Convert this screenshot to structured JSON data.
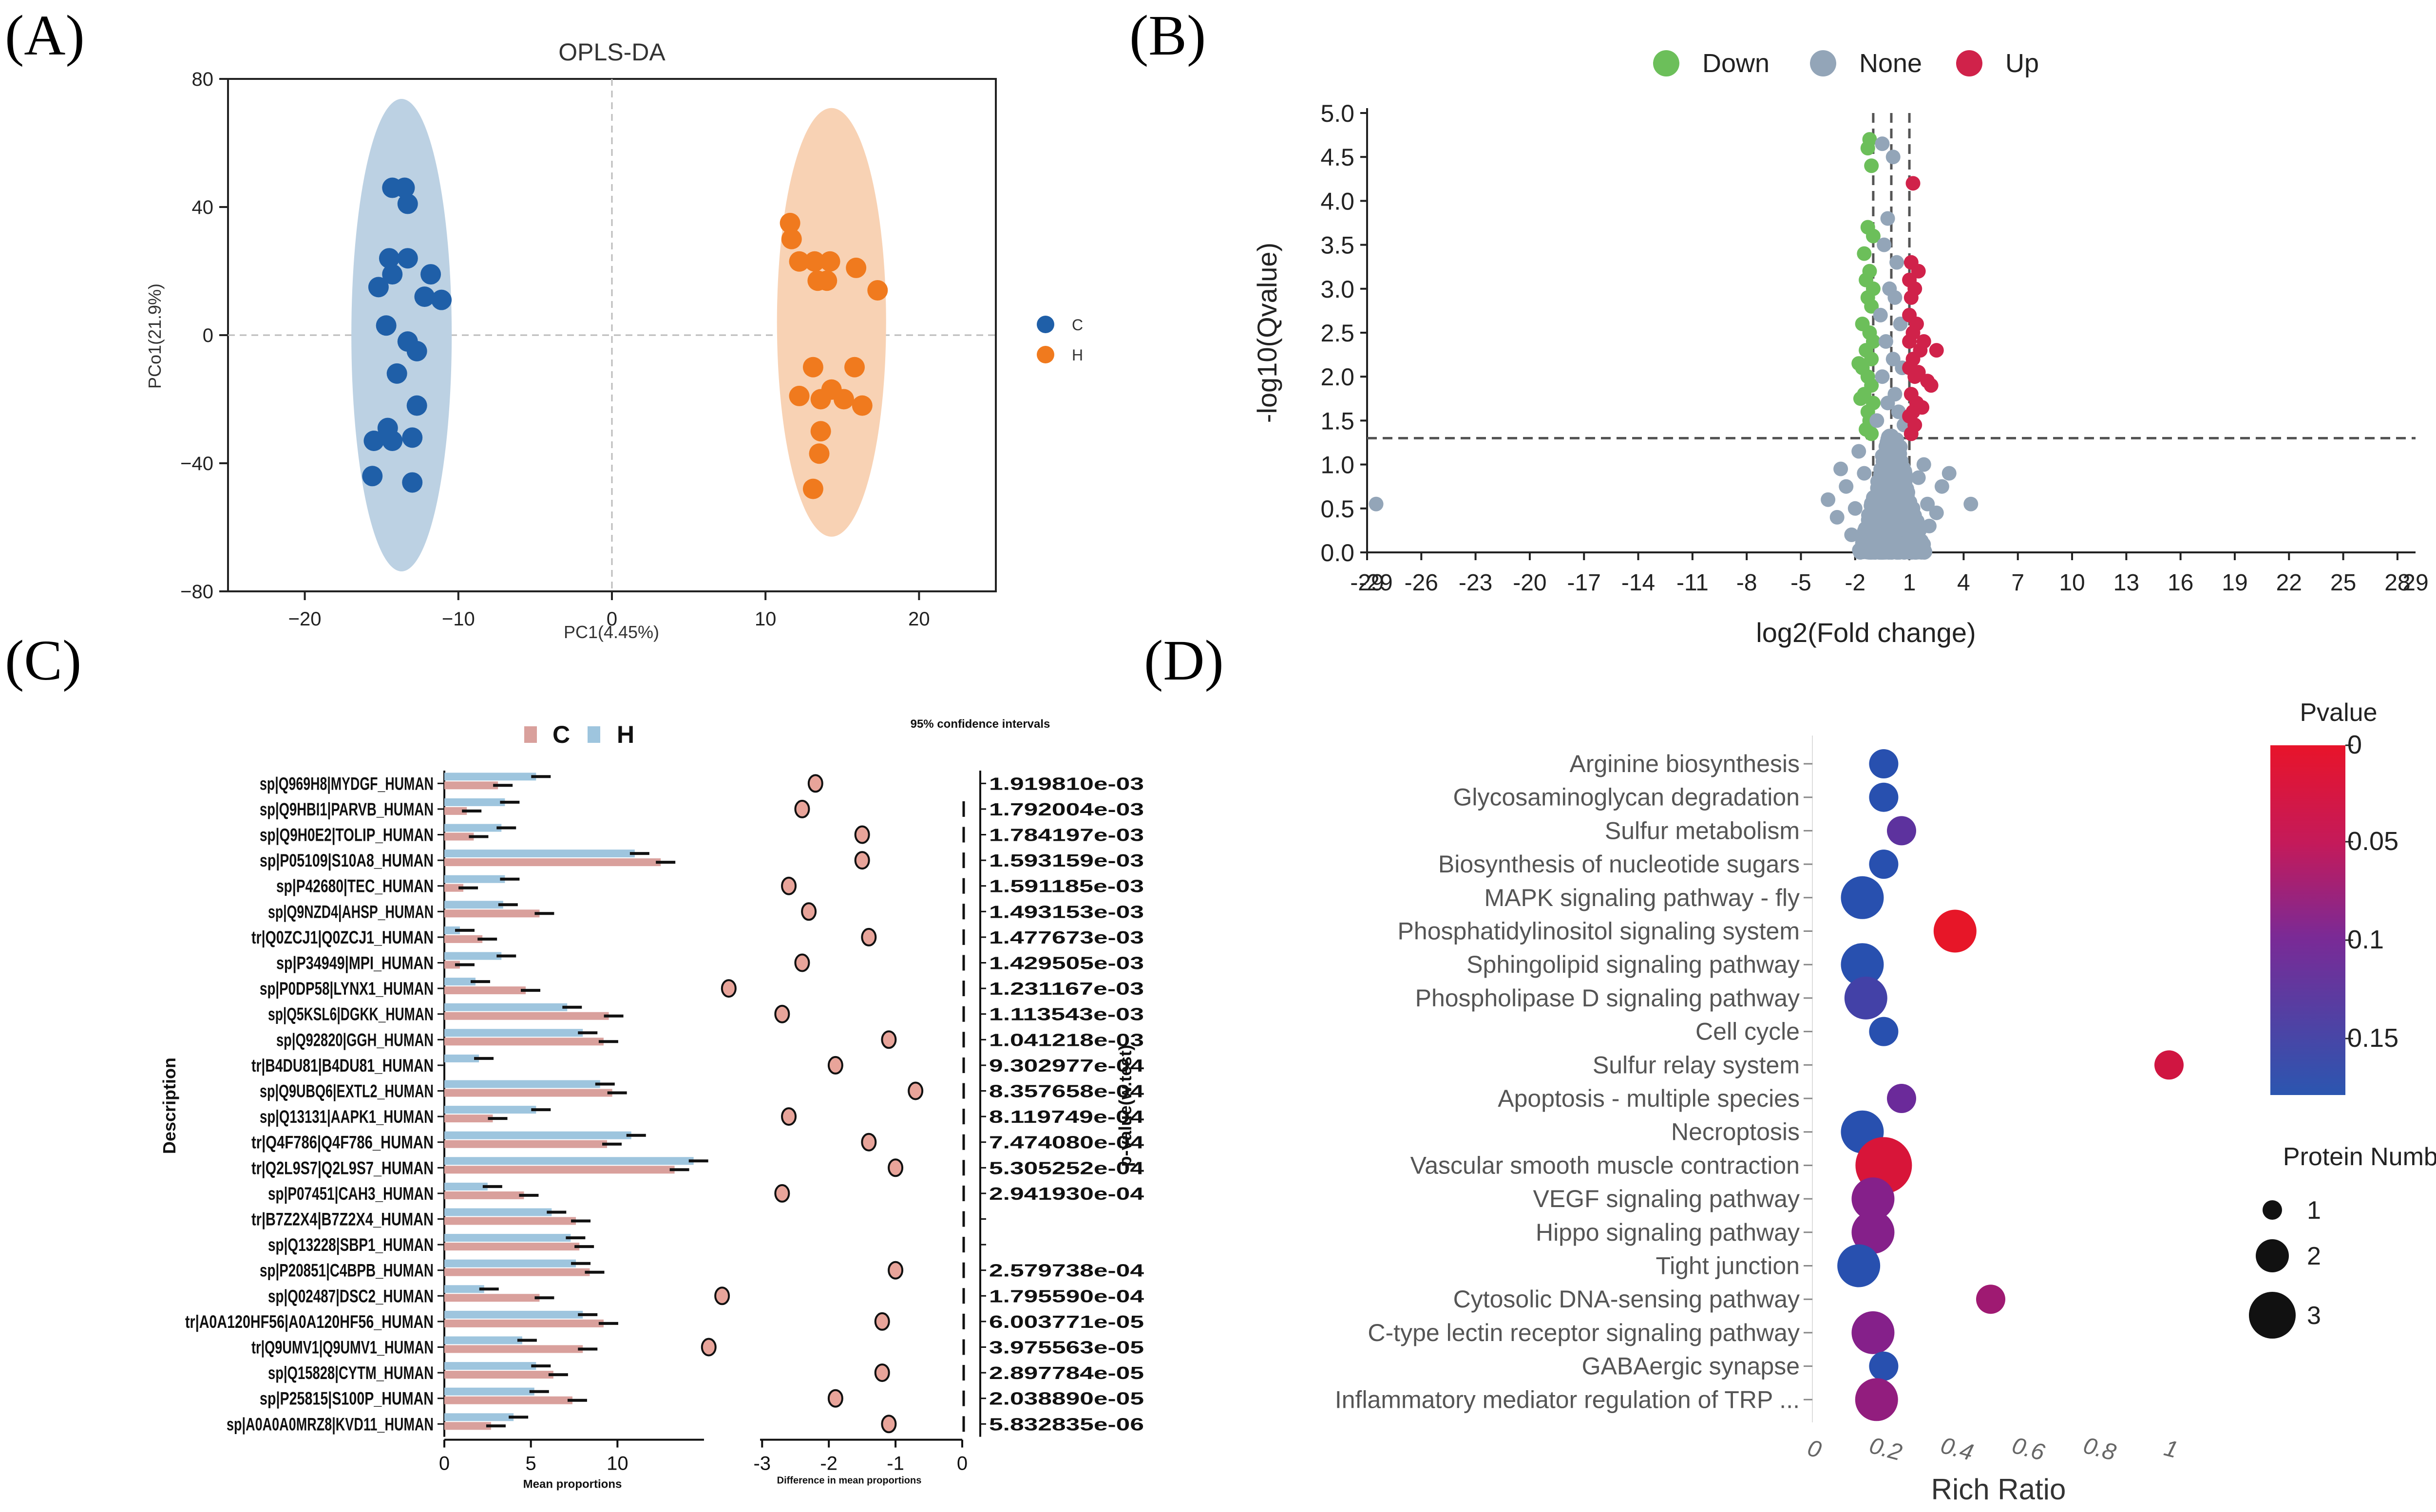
{
  "panels": {
    "a": "(A)",
    "b": "(B)",
    "c": "(C)",
    "d": "(D)"
  },
  "chart_data": [
    {
      "type": "scatter",
      "id": "A",
      "title": "OPLS-DA",
      "xlabel": "PC1(4.45%)",
      "ylabel": "PCo1(21.9%)",
      "xlim": [
        -25,
        25
      ],
      "ylim": [
        -80,
        80
      ],
      "xticks": [
        -20,
        -10,
        0,
        10,
        20
      ],
      "yticks": [
        80,
        40,
        0,
        -40,
        -80
      ],
      "grid": false,
      "legend_position": "right",
      "colors": {
        "C": "#1f5fa8",
        "H": "#f07a1e",
        "ellipse_C": "#bcd1e3",
        "ellipse_H": "#f8d2b4"
      },
      "series": [
        {
          "name": "C",
          "points": [
            [
              -14.3,
              46
            ],
            [
              -13.5,
              46
            ],
            [
              -13.3,
              41
            ],
            [
              -14.5,
              24
            ],
            [
              -14.3,
              19
            ],
            [
              -13.3,
              24
            ],
            [
              -11.8,
              19
            ],
            [
              -12.2,
              12
            ],
            [
              -11.1,
              11
            ],
            [
              -15.2,
              15
            ],
            [
              -14.7,
              3
            ],
            [
              -13.3,
              -2
            ],
            [
              -12.7,
              -5
            ],
            [
              -14,
              -12
            ],
            [
              -12.7,
              -22
            ],
            [
              -14.6,
              -29
            ],
            [
              -15.5,
              -33
            ],
            [
              -14.3,
              -33
            ],
            [
              -13,
              -32
            ],
            [
              -15.6,
              -44
            ],
            [
              -13,
              -46
            ]
          ]
        },
        {
          "name": "H",
          "points": [
            [
              11.6,
              35
            ],
            [
              11.7,
              30
            ],
            [
              12.2,
              23
            ],
            [
              13.2,
              23
            ],
            [
              14.2,
              23
            ],
            [
              13.4,
              17
            ],
            [
              14,
              17
            ],
            [
              15.9,
              21
            ],
            [
              17.3,
              14
            ],
            [
              15.8,
              -10
            ],
            [
              13.1,
              -10
            ],
            [
              14.3,
              -17
            ],
            [
              12.2,
              -19
            ],
            [
              15.1,
              -20
            ],
            [
              13.6,
              -20
            ],
            [
              16.3,
              -22
            ],
            [
              13.6,
              -30
            ],
            [
              13.5,
              -37
            ],
            [
              13.1,
              -48
            ]
          ]
        }
      ]
    },
    {
      "type": "scatter",
      "id": "B",
      "xlabel": "log2(Fold change)",
      "ylabel": "-log10(Qvalue)",
      "xlim": [
        -29,
        29
      ],
      "ylim": [
        0,
        5
      ],
      "xticks": [
        "-29",
        "-26",
        "-23",
        "-20",
        "-17",
        "-14",
        "-11",
        "-8",
        "-5",
        "-2",
        "1",
        "4",
        "7",
        "10",
        "13",
        "16",
        "19",
        "22",
        "25",
        "28"
      ],
      "extra_xticks": [
        "-29",
        "29"
      ],
      "yticks": [
        "5.0",
        "4.5",
        "4.0",
        "3.5",
        "3.0",
        "2.5",
        "2.0",
        "1.5",
        "1.0",
        "0.5",
        "0.0"
      ],
      "threshold_y": 1.3,
      "threshold_x": [
        -1,
        0,
        1
      ],
      "legend": [
        "Down",
        "None",
        "Up"
      ],
      "legend_position": "top",
      "colors": {
        "Down": "#6cbf5a",
        "None": "#93a5b8",
        "Up": "#d0224a"
      },
      "series": [
        {
          "name": "Down",
          "points": [
            [
              -1.2,
              4.7
            ],
            [
              -1.3,
              4.6
            ],
            [
              -1.1,
              4.4
            ],
            [
              -1.3,
              3.7
            ],
            [
              -1,
              3.6
            ],
            [
              -1.5,
              3.4
            ],
            [
              -1.2,
              3.2
            ],
            [
              -1.4,
              3.1
            ],
            [
              -1,
              3
            ],
            [
              -1.3,
              2.9
            ],
            [
              -1.1,
              2.8
            ],
            [
              -1.6,
              2.6
            ],
            [
              -1.2,
              2.5
            ],
            [
              -1,
              2.4
            ],
            [
              -1.4,
              2.3
            ],
            [
              -1.1,
              2.2
            ],
            [
              -1.6,
              2.1
            ],
            [
              -1.3,
              2
            ],
            [
              -1.1,
              1.9
            ],
            [
              -1.5,
              1.8
            ],
            [
              -1,
              1.7
            ],
            [
              -1.3,
              1.6
            ],
            [
              -1.2,
              1.5
            ],
            [
              -1.4,
              1.4
            ],
            [
              -1.1,
              1.35
            ],
            [
              -1.8,
              2.15
            ],
            [
              -1.7,
              1.75
            ]
          ]
        },
        {
          "name": "None",
          "points": [
            [
              -28.5,
              0.55
            ],
            [
              4.4,
              0.55
            ],
            [
              -0.5,
              4.65
            ],
            [
              0.1,
              4.5
            ],
            [
              -0.2,
              3.8
            ],
            [
              -0.4,
              3.5
            ],
            [
              0.3,
              3.3
            ],
            [
              -0.1,
              3.0
            ],
            [
              0.2,
              2.9
            ],
            [
              -0.6,
              2.7
            ],
            [
              0.5,
              2.6
            ],
            [
              -0.3,
              2.4
            ],
            [
              0.1,
              2.2
            ],
            [
              0.6,
              2.1
            ],
            [
              -0.5,
              2
            ],
            [
              0.2,
              1.8
            ],
            [
              -0.2,
              1.7
            ],
            [
              0.4,
              1.6
            ],
            [
              -0.8,
              1.5
            ],
            [
              0.7,
              1.45
            ],
            [
              -3.5,
              0.6
            ],
            [
              -3,
              0.4
            ],
            [
              -2.5,
              0.75
            ],
            [
              -2,
              0.5
            ],
            [
              -1.5,
              0.9
            ],
            [
              2,
              0.55
            ],
            [
              2.5,
              0.45
            ],
            [
              1.5,
              0.85
            ],
            [
              -2.2,
              0.2
            ],
            [
              2.1,
              0.3
            ],
            [
              -1,
              0.1
            ],
            [
              1,
              0.05
            ],
            [
              0,
              0.25
            ],
            [
              -0.5,
              1.1
            ],
            [
              0.5,
              1.2
            ],
            [
              -2.8,
              0.95
            ],
            [
              2.8,
              0.75
            ],
            [
              1.8,
              1.0
            ],
            [
              -1.8,
              1.15
            ],
            [
              0.3,
              0.65
            ],
            [
              -0.3,
              0.55
            ],
            [
              3.2,
              0.9
            ]
          ]
        },
        {
          "name": "Up",
          "points": [
            [
              1.2,
              4.2
            ],
            [
              1.1,
              3.3
            ],
            [
              1.5,
              3.2
            ],
            [
              1,
              3.1
            ],
            [
              1.3,
              3
            ],
            [
              1.1,
              2.9
            ],
            [
              1,
              2.7
            ],
            [
              1.4,
              2.6
            ],
            [
              1.2,
              2.5
            ],
            [
              1,
              2.4
            ],
            [
              1.6,
              2.3
            ],
            [
              2.5,
              2.3
            ],
            [
              1.8,
              2.4
            ],
            [
              1.2,
              2.2
            ],
            [
              1,
              2.1
            ],
            [
              1.5,
              2.05
            ],
            [
              1.3,
              2
            ],
            [
              2,
              1.95
            ],
            [
              1.1,
              1.8
            ],
            [
              1.4,
              1.7
            ],
            [
              1.2,
              1.6
            ],
            [
              1,
              1.55
            ],
            [
              1.3,
              1.45
            ],
            [
              1.1,
              1.35
            ],
            [
              2.2,
              1.9
            ],
            [
              1.7,
              1.65
            ]
          ]
        }
      ]
    },
    {
      "type": "bar",
      "id": "C",
      "orientation": "horizontal",
      "legend": [
        "C",
        "H"
      ],
      "colors": {
        "C": "#d9a09c",
        "H": "#9ec5de",
        "dot_fill": "#e8a49a"
      },
      "ci_title": "95% confidence intervals",
      "ylabel": "Description",
      "xlabel": "Mean proportions",
      "diff_xlabel": "Difference in mean proportions",
      "pvalue_label": "p-value(w.test)",
      "mean_ticks": [
        "0",
        "5",
        "10"
      ],
      "mean_xlim": [
        0,
        15
      ],
      "diff_ticks": [
        "-3",
        "-2",
        "-1",
        "0"
      ],
      "diff_xlim": [
        -4.2,
        0
      ],
      "categories": [
        "sp|Q969H8|MYDGF_HUMAN",
        "sp|Q9HBI1|PARVB_HUMAN",
        "sp|Q9H0E2|TOLIP_HUMAN",
        "sp|P05109|S10A8_HUMAN",
        "sp|P42680|TEC_HUMAN",
        "sp|Q9NZD4|AHSP_HUMAN",
        "tr|Q0ZCJ1|Q0ZCJ1_HUMAN",
        "sp|P34949|MPI_HUMAN",
        "sp|P0DP58|LYNX1_HUMAN",
        "sp|Q5KSL6|DGKK_HUMAN",
        "sp|Q92820|GGH_HUMAN",
        "tr|B4DU81|B4DU81_HUMAN",
        "sp|Q9UBQ6|EXTL2_HUMAN",
        "sp|Q13131|AAPK1_HUMAN",
        "tr|Q4F786|Q4F786_HUMAN",
        "tr|Q2L9S7|Q2L9S7_HUMAN",
        "sp|P07451|CAH3_HUMAN",
        "tr|B7Z2X4|B7Z2X4_HUMAN",
        "sp|Q13228|SBP1_HUMAN",
        "sp|P20851|C4BPB_HUMAN",
        "sp|Q02487|DSC2_HUMAN",
        "tr|A0A120HF56|A0A120HF56_HUMAN",
        "tr|Q9UMV1|Q9UMV1_HUMAN",
        "sp|Q15828|CYTM_HUMAN",
        "sp|P25815|S100P_HUMAN",
        "sp|A0A0A0MRZ8|KVD11_HUMAN"
      ],
      "series": [
        {
          "name": "H",
          "values": [
            5.3,
            3.5,
            3.3,
            11,
            3.5,
            3.4,
            0.9,
            3.3,
            1.8,
            7.1,
            8,
            2,
            9,
            5.3,
            10.8,
            14.4,
            2.5,
            6.2,
            7.3,
            7.6,
            2.3,
            8,
            4.5,
            5.3,
            5.2,
            4
          ]
        },
        {
          "name": "C",
          "values": [
            3.1,
            1.3,
            1.7,
            12.5,
            1.1,
            5.5,
            2.2,
            0.9,
            4.7,
            9.5,
            9.2,
            0,
            9.7,
            2.8,
            9.4,
            13.3,
            4.6,
            7.6,
            7.8,
            8.4,
            5.5,
            9.2,
            8,
            6.3,
            7.4,
            2.7
          ]
        }
      ],
      "differences": [
        -2.2,
        -2.4,
        -1.5,
        -1.5,
        -2.6,
        -2.3,
        -1.4,
        -2.4,
        -3.5,
        -2.7,
        -1.1,
        -1.9,
        -0.7,
        -2.6,
        -1.4,
        -1.0,
        -2.7,
        null,
        null,
        -1.0,
        -3.6,
        -1.2,
        -3.8,
        -1.2,
        -1.9,
        -1.1
      ],
      "pvalues": [
        "1.919810e-03",
        "1.792004e-03",
        "1.784197e-03",
        "1.593159e-03",
        "1.591185e-03",
        "1.493153e-03",
        "1.477673e-03",
        "1.429505e-03",
        "1.231167e-03",
        "1.113543e-03",
        "1.041218e-03",
        "9.302977e-04",
        "8.357658e-04",
        "8.119749e-04",
        "7.474080e-04",
        "5.305252e-04",
        "2.941930e-04",
        "",
        "",
        "2.579738e-04",
        "1.795590e-04",
        "6.003771e-05",
        "3.975563e-05",
        "2.897784e-05",
        "2.038890e-05",
        "5.832835e-06"
      ]
    },
    {
      "type": "scatter",
      "subtype": "bubble",
      "id": "D",
      "xlabel": "Rich Ratio",
      "xlim": [
        0,
        1
      ],
      "xticks": [
        "0",
        "0.2",
        "0.4",
        "0.6",
        "0.8",
        "1"
      ],
      "colorbar_title": "Pvalue",
      "colorbar_ticks": [
        "0",
        "0.05",
        "0.1",
        "0.15"
      ],
      "size_title": "Protein Number",
      "size_ticks": [
        "1",
        "2",
        "3"
      ],
      "categories": [
        "Arginine biosynthesis",
        "Glycosaminoglycan degradation",
        "Sulfur metabolism",
        "Biosynthesis of nucleotide sugars",
        "MAPK signaling pathway - fly",
        "Phosphatidylinositol signaling system",
        "Sphingolipid signaling pathway",
        "Phospholipase D signaling pathway",
        "Cell cycle",
        "Sulfur relay system",
        "Apoptosis - multiple species",
        "Necroptosis",
        "Vascular smooth muscle contraction",
        "VEGF signaling pathway",
        "Hippo signaling pathway",
        "Tight junction",
        "Cytosolic DNA-sensing pathway",
        "C-type lectin receptor signaling pathway",
        "GABAergic synapse",
        "Inflammatory mediator regulation of TRP ..."
      ],
      "rich_ratio": [
        0.2,
        0.2,
        0.25,
        0.2,
        0.14,
        0.4,
        0.14,
        0.15,
        0.2,
        1.0,
        0.25,
        0.14,
        0.2,
        0.17,
        0.17,
        0.13,
        0.5,
        0.17,
        0.2,
        0.18
      ],
      "protein_number": [
        1,
        1,
        1,
        1,
        2,
        2,
        2,
        2,
        1,
        1,
        1,
        2,
        3,
        2,
        2,
        2,
        1,
        2,
        1,
        2
      ],
      "pvalue": [
        0.17,
        0.17,
        0.13,
        0.17,
        0.17,
        0.0,
        0.17,
        0.15,
        0.17,
        0.03,
        0.12,
        0.17,
        0.02,
        0.1,
        0.1,
        0.17,
        0.08,
        0.1,
        0.17,
        0.09
      ]
    }
  ]
}
